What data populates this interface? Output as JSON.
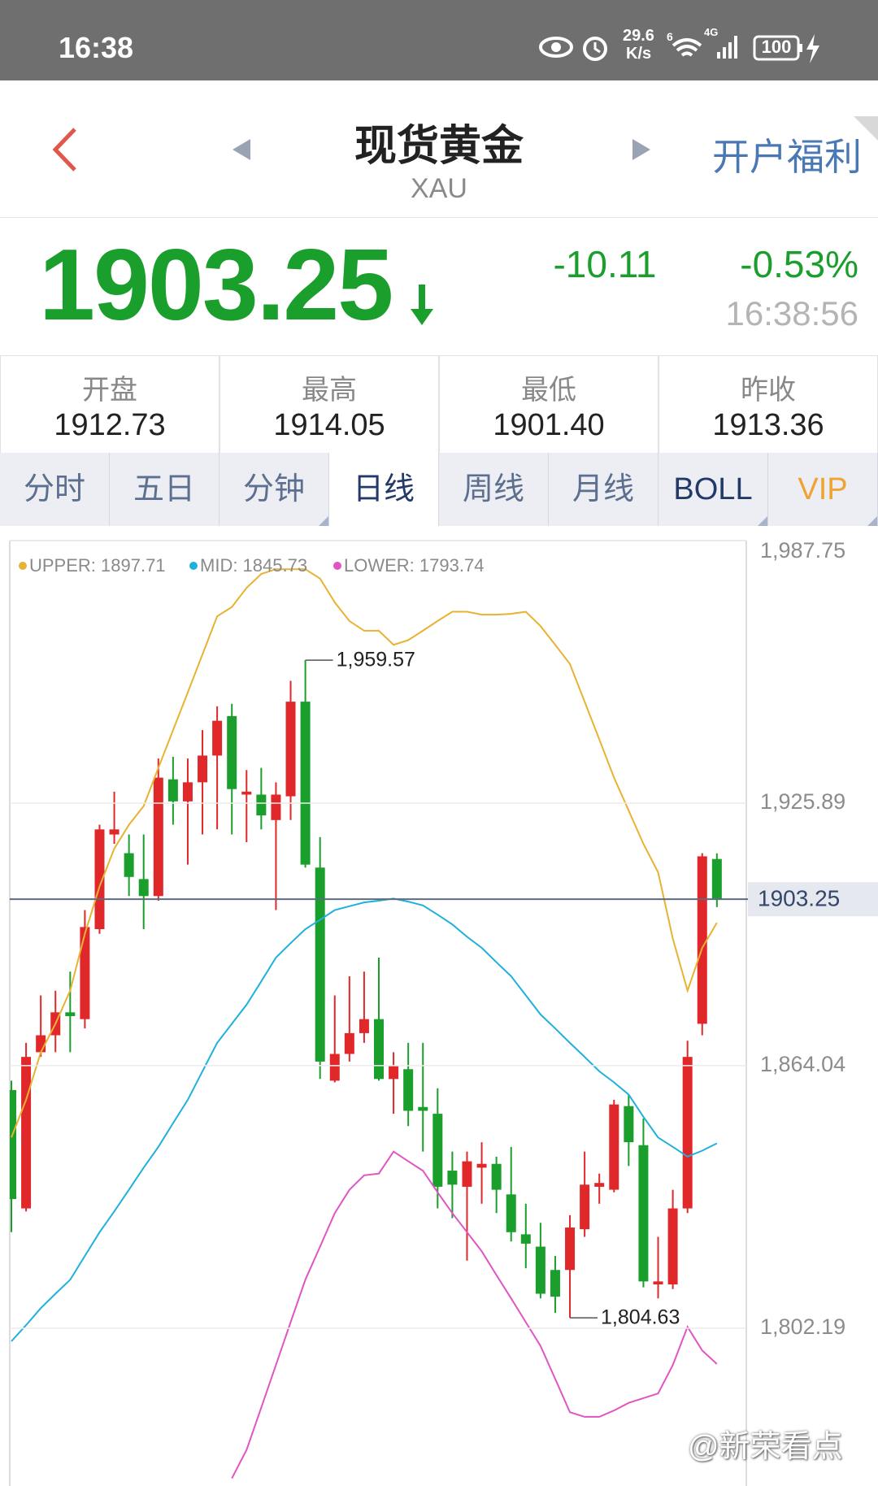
{
  "status_bar": {
    "time": "16:38",
    "speed": [
      "29.6",
      "K/s"
    ],
    "wifi_badge": "6",
    "network": "4G",
    "battery": "100"
  },
  "header": {
    "title": "现货黄金",
    "subtitle": "XAU",
    "action": "开户福利"
  },
  "quote": {
    "price": "1903.25",
    "change": "-10.11",
    "change_pct": "-0.53%",
    "time": "16:38:56"
  },
  "stats": [
    {
      "label": "开盘",
      "value": "1912.73"
    },
    {
      "label": "最高",
      "value": "1914.05"
    },
    {
      "label": "最低",
      "value": "1901.40"
    },
    {
      "label": "昨收",
      "value": "1913.36"
    }
  ],
  "tabs": {
    "items": [
      "分时",
      "五日",
      "分钟",
      "日线",
      "周线",
      "月线",
      "BOLL",
      "VIP"
    ],
    "selected_index": 3
  },
  "chart_data": {
    "type": "candlestick",
    "up_color": "#e0282a",
    "down_color": "#1a9e2c",
    "open": [
      1858.3,
      1830.4,
      1867.2,
      1871.2,
      1876.6,
      1875.0,
      1896.2,
      1918.5,
      1914.1,
      1908.0,
      1904.0,
      1931.5,
      1926.3,
      1930.8,
      1937.1,
      1946.4,
      1927.9,
      1927.9,
      1921.9,
      1927.5,
      1949.8,
      1910.7,
      1860.5,
      1866.8,
      1871.7,
      1875.0,
      1860.9,
      1863.2,
      1854.3,
      1852.7,
      1839.3,
      1835.5,
      1840.0,
      1840.9,
      1833.7,
      1824.3,
      1821.4,
      1815.9,
      1815.9,
      1825.5,
      1835.5,
      1834.8,
      1854.5,
      1845.3,
      1812.5,
      1812.5,
      1830.4,
      1873.9,
      1912.73
    ],
    "high": [
      1860.5,
      1869.4,
      1880.6,
      1881.7,
      1886.2,
      1900.7,
      1920.8,
      1928.6,
      1918.5,
      1918.5,
      1936.4,
      1936.8,
      1936.4,
      1943.1,
      1948.7,
      1949.3,
      1933.7,
      1934.2,
      1930.8,
      1954.7,
      1959.57,
      1917.9,
      1880.6,
      1885.1,
      1886.2,
      1889.5,
      1867.2,
      1869.4,
      1869.4,
      1858.7,
      1843.8,
      1843.8,
      1846.0,
      1842.6,
      1844.9,
      1831.5,
      1827.0,
      1819.2,
      1828.8,
      1843.8,
      1838.6,
      1856.0,
      1857.2,
      1851.6,
      1823.7,
      1834.8,
      1869.9,
      1914.1,
      1914.05
    ],
    "low": [
      1824.8,
      1829.7,
      1866.1,
      1867.2,
      1867.2,
      1872.8,
      1895.1,
      1916.3,
      1904.0,
      1896.2,
      1902.9,
      1920.8,
      1911.4,
      1918.5,
      1919.7,
      1918.5,
      1916.7,
      1919.7,
      1900.7,
      1921.9,
      1910.7,
      1860.9,
      1860.1,
      1865.0,
      1869.4,
      1860.5,
      1852.7,
      1849.8,
      1843.8,
      1830.4,
      1828.1,
      1818.1,
      1831.5,
      1829.3,
      1822.6,
      1816.3,
      1809.2,
      1805.8,
      1804.63,
      1823.7,
      1831.5,
      1834.2,
      1840.4,
      1811.8,
      1809.2,
      1811.4,
      1829.3,
      1871.2,
      1901.4
    ],
    "close": [
      1832.6,
      1866.1,
      1871.2,
      1876.6,
      1875.7,
      1896.7,
      1919.7,
      1919.7,
      1908.5,
      1904.0,
      1931.9,
      1926.3,
      1930.8,
      1937.1,
      1945.3,
      1929.2,
      1928.6,
      1923.0,
      1927.9,
      1949.8,
      1911.4,
      1865.0,
      1866.8,
      1871.7,
      1875.0,
      1860.9,
      1863.9,
      1853.4,
      1853.4,
      1835.5,
      1836.0,
      1841.5,
      1840.9,
      1834.8,
      1824.8,
      1822.1,
      1810.3,
      1809.6,
      1825.9,
      1836.0,
      1836.4,
      1854.9,
      1846.0,
      1813.2,
      1813.2,
      1830.4,
      1866.1,
      1913.36,
      1903.25
    ],
    "series": [
      {
        "name": "UPPER: 1897.71",
        "color": "#e8b233",
        "values": [
          1847.1,
          1856.0,
          1867.2,
          1873.9,
          1881.7,
          1895.1,
          1906.3,
          1915.2,
          1920.8,
          1925.2,
          1934.2,
          1943.1,
          1952.0,
          1960.9,
          1969.9,
          1972.1,
          1976.6,
          1979.9,
          1981.0,
          1981.0,
          1981.0,
          1978.8,
          1973.2,
          1968.8,
          1966.5,
          1966.5,
          1963.2,
          1964.3,
          1966.5,
          1968.8,
          1971.0,
          1971.0,
          1970.3,
          1970.3,
          1970.5,
          1971.0,
          1967.6,
          1963.2,
          1958.7,
          1949.8,
          1940.9,
          1931.9,
          1924.1,
          1916.3,
          1909.6,
          1894.0,
          1881.7,
          1891.8,
          1897.71
        ]
      },
      {
        "name": "MID: 1845.73",
        "color": "#1fb0de",
        "values": [
          1799.1,
          1802.9,
          1806.9,
          1810.3,
          1813.6,
          1819.2,
          1824.8,
          1829.7,
          1834.8,
          1840.0,
          1844.9,
          1850.5,
          1856.0,
          1862.7,
          1869.4,
          1873.9,
          1878.4,
          1883.9,
          1889.5,
          1892.9,
          1896.2,
          1898.4,
          1900.7,
          1901.6,
          1902.5,
          1902.9,
          1903.4,
          1902.7,
          1901.8,
          1899.6,
          1897.3,
          1894.4,
          1891.8,
          1888.4,
          1885.1,
          1880.6,
          1876.1,
          1872.8,
          1869.4,
          1866.1,
          1862.7,
          1860.1,
          1857.2,
          1852.0,
          1847.1,
          1844.9,
          1842.6,
          1844.0,
          1845.73
        ]
      },
      {
        "name": "LOWER: 1793.74",
        "color": "#e055c2",
        "values": [
          null,
          null,
          null,
          null,
          null,
          null,
          null,
          null,
          null,
          null,
          null,
          null,
          null,
          null,
          null,
          1766.8,
          1773.5,
          1783.5,
          1793.5,
          1803.6,
          1813.6,
          1821.4,
          1829.3,
          1834.8,
          1838.2,
          1838.6,
          1843.8,
          1841.5,
          1839.3,
          1834.2,
          1829.3,
          1824.8,
          1820.3,
          1814.7,
          1809.2,
          1803.6,
          1798.0,
          1790.2,
          1782.4,
          1781.3,
          1781.3,
          1782.8,
          1784.6,
          1785.7,
          1786.8,
          1793.5,
          1802.5,
          1796.9,
          1793.74
        ]
      }
    ],
    "ylim": [
      1765.0,
      1987.75
    ],
    "yticks": [
      {
        "value": 1987.75,
        "label": "1,987.75"
      },
      {
        "value": 1925.89,
        "label": "1,925.89"
      },
      {
        "value": 1864.04,
        "label": "1,864.04"
      },
      {
        "value": 1802.19,
        "label": "1,802.19"
      }
    ],
    "grid": true,
    "current_price": 1903.25,
    "annotations": [
      {
        "text": "1,959.57"
      },
      {
        "text": "1,804.63"
      }
    ]
  },
  "watermark": "@新荣看点"
}
